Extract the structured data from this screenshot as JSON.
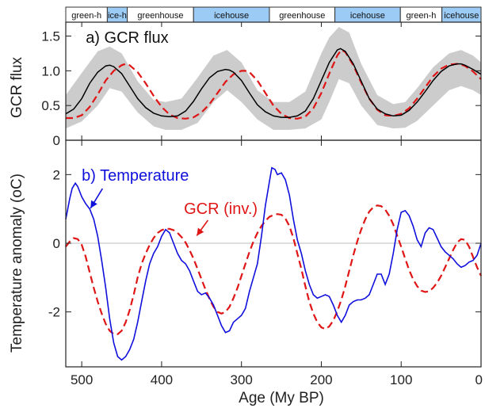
{
  "colors": {
    "temperature": "#1010dd",
    "gcr": "#e01515",
    "envelope": "#cccccc",
    "mean": "#000000",
    "icehouse": "#9ccbf5",
    "greenhouse": "#ffffff",
    "zero_line": "#bbbbbb"
  },
  "climate_bands": [
    {
      "label": "green-h",
      "type": "greenhouse",
      "from": 520,
      "to": 468
    },
    {
      "label": "ice-h",
      "type": "icehouse",
      "from": 468,
      "to": 443
    },
    {
      "label": "greenhouse",
      "type": "greenhouse",
      "from": 443,
      "to": 360
    },
    {
      "label": "icehouse",
      "type": "icehouse",
      "from": 360,
      "to": 265
    },
    {
      "label": "greenhouse",
      "type": "greenhouse",
      "from": 265,
      "to": 183
    },
    {
      "label": "icehouse",
      "type": "icehouse",
      "from": 183,
      "to": 101
    },
    {
      "label": "green-h",
      "type": "greenhouse",
      "from": 101,
      "to": 49
    },
    {
      "label": "icehouse",
      "type": "icehouse",
      "from": 49,
      "to": 0
    }
  ],
  "chart_data": [
    {
      "type": "line",
      "title": "a) GCR flux",
      "xlabel": "",
      "ylabel": "GCR flux",
      "xlim": [
        520,
        0
      ],
      "ylim": [
        0,
        1.7
      ],
      "yticks": [
        0,
        0.5,
        1.0,
        1.5
      ],
      "ytick_labels": [
        "0",
        "0.5",
        "1.0",
        "1.5"
      ],
      "envelope": {
        "x": [
          520,
          500,
          480,
          465,
          450,
          430,
          410,
          395,
          375,
          355,
          335,
          318,
          300,
          280,
          260,
          240,
          220,
          200,
          190,
          178,
          165,
          150,
          130,
          110,
          95,
          80,
          60,
          40,
          25,
          10,
          0
        ],
        "upper": [
          0.65,
          0.97,
          1.28,
          1.35,
          1.25,
          0.85,
          0.58,
          0.55,
          0.6,
          0.9,
          1.22,
          1.3,
          1.12,
          0.72,
          0.55,
          0.55,
          0.7,
          1.25,
          1.48,
          1.63,
          1.55,
          1.1,
          0.65,
          0.52,
          0.55,
          0.75,
          1.05,
          1.25,
          1.3,
          1.22,
          1.12
        ],
        "lower": [
          0.17,
          0.27,
          0.5,
          0.75,
          0.7,
          0.4,
          0.2,
          0.15,
          0.15,
          0.25,
          0.55,
          0.72,
          0.55,
          0.3,
          0.15,
          0.15,
          0.17,
          0.3,
          0.55,
          0.88,
          0.82,
          0.5,
          0.22,
          0.17,
          0.18,
          0.28,
          0.5,
          0.72,
          0.78,
          0.72,
          0.65
        ]
      },
      "series": [
        {
          "style": "solid",
          "x": [
            520,
            510,
            500,
            490,
            480,
            470,
            465,
            460,
            450,
            440,
            430,
            420,
            410,
            400,
            390,
            380,
            370,
            360,
            350,
            340,
            330,
            320,
            315,
            310,
            300,
            290,
            280,
            270,
            260,
            250,
            240,
            230,
            220,
            210,
            200,
            190,
            180,
            176,
            170,
            160,
            150,
            140,
            130,
            120,
            110,
            100,
            90,
            80,
            70,
            60,
            50,
            40,
            30,
            25,
            20,
            10,
            0
          ],
          "y": [
            0.38,
            0.45,
            0.6,
            0.82,
            0.98,
            1.07,
            1.08,
            1.06,
            0.96,
            0.78,
            0.6,
            0.47,
            0.39,
            0.35,
            0.34,
            0.35,
            0.42,
            0.56,
            0.74,
            0.9,
            0.99,
            1.02,
            1.01,
            0.98,
            0.86,
            0.68,
            0.51,
            0.41,
            0.35,
            0.33,
            0.33,
            0.35,
            0.42,
            0.6,
            0.86,
            1.12,
            1.3,
            1.32,
            1.28,
            1.1,
            0.85,
            0.6,
            0.45,
            0.38,
            0.35,
            0.36,
            0.43,
            0.55,
            0.7,
            0.86,
            0.99,
            1.07,
            1.1,
            1.1,
            1.08,
            1.02,
            0.95
          ]
        },
        {
          "style": "dashed",
          "x": [
            520,
            510,
            500,
            490,
            480,
            470,
            460,
            450,
            445,
            440,
            430,
            420,
            410,
            400,
            390,
            380,
            370,
            360,
            350,
            340,
            330,
            320,
            310,
            300,
            295,
            290,
            280,
            270,
            260,
            250,
            240,
            230,
            220,
            210,
            200,
            190,
            180,
            175,
            170,
            160,
            150,
            140,
            130,
            120,
            110,
            100,
            90,
            80,
            70,
            60,
            50,
            40,
            30,
            25,
            20,
            10,
            0
          ],
          "y": [
            0.32,
            0.32,
            0.36,
            0.48,
            0.66,
            0.86,
            1.0,
            1.08,
            1.1,
            1.08,
            0.98,
            0.82,
            0.64,
            0.48,
            0.37,
            0.32,
            0.31,
            0.33,
            0.4,
            0.52,
            0.68,
            0.84,
            0.95,
            1.0,
            1.0,
            0.98,
            0.86,
            0.68,
            0.5,
            0.38,
            0.32,
            0.31,
            0.34,
            0.46,
            0.68,
            0.96,
            1.22,
            1.3,
            1.27,
            1.08,
            0.83,
            0.6,
            0.44,
            0.36,
            0.35,
            0.38,
            0.46,
            0.6,
            0.76,
            0.92,
            1.03,
            1.09,
            1.1,
            1.09,
            1.07,
            0.99,
            0.88
          ]
        }
      ]
    },
    {
      "type": "line",
      "title": "b) Temperature",
      "annotation": "GCR (inv.)",
      "xlabel": "Age (My BP)",
      "ylabel": "Temperature anomaly (oC)",
      "xlim": [
        520,
        0
      ],
      "ylim": [
        -3.6,
        3.0
      ],
      "yticks": [
        -2,
        0,
        2
      ],
      "ytick_labels": [
        "-2",
        "0",
        "2"
      ],
      "xticks": [
        500,
        400,
        300,
        200,
        100,
        0
      ],
      "xtick_labels": [
        "500",
        "400",
        "300",
        "200",
        "100",
        "0"
      ],
      "series": [
        {
          "name": "Temperature",
          "style": "solid",
          "x": [
            520,
            515,
            512,
            508,
            505,
            500,
            495,
            490,
            485,
            480,
            475,
            470,
            465,
            460,
            455,
            450,
            445,
            440,
            435,
            430,
            425,
            420,
            415,
            410,
            405,
            400,
            395,
            390,
            385,
            380,
            375,
            370,
            365,
            360,
            355,
            350,
            345,
            340,
            335,
            330,
            325,
            320,
            315,
            310,
            305,
            300,
            295,
            290,
            285,
            280,
            275,
            270,
            265,
            262,
            258,
            255,
            250,
            245,
            240,
            235,
            230,
            225,
            220,
            215,
            210,
            205,
            200,
            195,
            190,
            185,
            180,
            175,
            170,
            165,
            160,
            155,
            150,
            145,
            140,
            135,
            130,
            125,
            120,
            115,
            110,
            105,
            100,
            95,
            90,
            85,
            80,
            75,
            70,
            65,
            60,
            55,
            50,
            45,
            40,
            35,
            30,
            25,
            20,
            15,
            10,
            5,
            0
          ],
          "y": [
            0.7,
            1.3,
            1.6,
            1.75,
            1.65,
            1.35,
            1.15,
            1.0,
            0.7,
            0.2,
            -0.5,
            -1.3,
            -2.2,
            -2.9,
            -3.3,
            -3.4,
            -3.3,
            -3.1,
            -2.8,
            -2.3,
            -1.7,
            -1.1,
            -0.6,
            -0.3,
            -0.1,
            0.2,
            0.4,
            0.3,
            0.0,
            -0.3,
            -0.5,
            -0.6,
            -0.8,
            -1.1,
            -1.4,
            -1.5,
            -1.45,
            -1.6,
            -1.8,
            -2.1,
            -2.4,
            -2.6,
            -2.55,
            -2.3,
            -2.2,
            -2.1,
            -1.9,
            -1.4,
            -1.0,
            -0.6,
            0.2,
            1.1,
            1.8,
            2.2,
            2.15,
            2.0,
            2.05,
            1.85,
            1.4,
            0.7,
            0.1,
            -0.3,
            -0.8,
            -1.2,
            -1.5,
            -1.6,
            -1.55,
            -1.5,
            -1.55,
            -1.8,
            -2.1,
            -2.3,
            -2.1,
            -1.8,
            -1.7,
            -1.65,
            -1.65,
            -1.6,
            -1.5,
            -1.2,
            -0.9,
            -0.9,
            -1.2,
            -0.9,
            -0.3,
            0.4,
            0.9,
            0.95,
            0.8,
            0.5,
            0.1,
            -0.1,
            0.3,
            0.45,
            0.4,
            0.15,
            -0.1,
            -0.25,
            -0.35,
            -0.45,
            -0.6,
            -0.7,
            -0.65,
            -0.55,
            -0.5,
            -0.35,
            0.0
          ]
        },
        {
          "name": "GCR (inv.)",
          "style": "dashed",
          "x": [
            520,
            515,
            510,
            505,
            500,
            495,
            490,
            485,
            480,
            475,
            470,
            465,
            460,
            455,
            450,
            445,
            440,
            435,
            430,
            425,
            420,
            415,
            410,
            405,
            400,
            395,
            390,
            385,
            380,
            375,
            370,
            365,
            360,
            355,
            350,
            345,
            340,
            335,
            330,
            325,
            320,
            315,
            310,
            305,
            300,
            295,
            290,
            285,
            280,
            275,
            270,
            265,
            260,
            255,
            250,
            245,
            240,
            235,
            230,
            225,
            220,
            215,
            210,
            205,
            200,
            195,
            190,
            185,
            180,
            175,
            170,
            165,
            160,
            155,
            150,
            145,
            140,
            135,
            130,
            125,
            120,
            115,
            110,
            105,
            100,
            95,
            90,
            85,
            80,
            75,
            70,
            65,
            60,
            55,
            50,
            45,
            40,
            35,
            30,
            25,
            20,
            15,
            10,
            5,
            0
          ],
          "y": [
            -0.1,
            0.05,
            0.15,
            0.12,
            -0.05,
            -0.4,
            -0.85,
            -1.3,
            -1.7,
            -2.05,
            -2.35,
            -2.55,
            -2.65,
            -2.65,
            -2.55,
            -2.3,
            -1.95,
            -1.5,
            -1.0,
            -0.6,
            -0.3,
            -0.05,
            0.15,
            0.3,
            0.38,
            0.42,
            0.42,
            0.38,
            0.3,
            0.18,
            0.02,
            -0.2,
            -0.45,
            -0.75,
            -1.05,
            -1.35,
            -1.62,
            -1.85,
            -2.0,
            -2.05,
            -2.0,
            -1.85,
            -1.6,
            -1.3,
            -0.95,
            -0.6,
            -0.25,
            0.05,
            0.3,
            0.5,
            0.65,
            0.77,
            0.82,
            0.85,
            0.83,
            0.72,
            0.5,
            0.15,
            -0.3,
            -0.75,
            -1.25,
            -1.7,
            -2.05,
            -2.3,
            -2.45,
            -2.5,
            -2.42,
            -2.25,
            -1.98,
            -1.65,
            -1.25,
            -0.8,
            -0.35,
            0.05,
            0.4,
            0.7,
            0.92,
            1.05,
            1.1,
            1.08,
            0.98,
            0.8,
            0.55,
            0.22,
            -0.1,
            -0.45,
            -0.78,
            -1.05,
            -1.25,
            -1.38,
            -1.42,
            -1.4,
            -1.3,
            -1.15,
            -0.95,
            -0.7,
            -0.45,
            -0.2,
            0.02,
            0.12,
            0.1,
            -0.1,
            -0.4,
            -0.7,
            -0.95
          ]
        }
      ]
    }
  ]
}
